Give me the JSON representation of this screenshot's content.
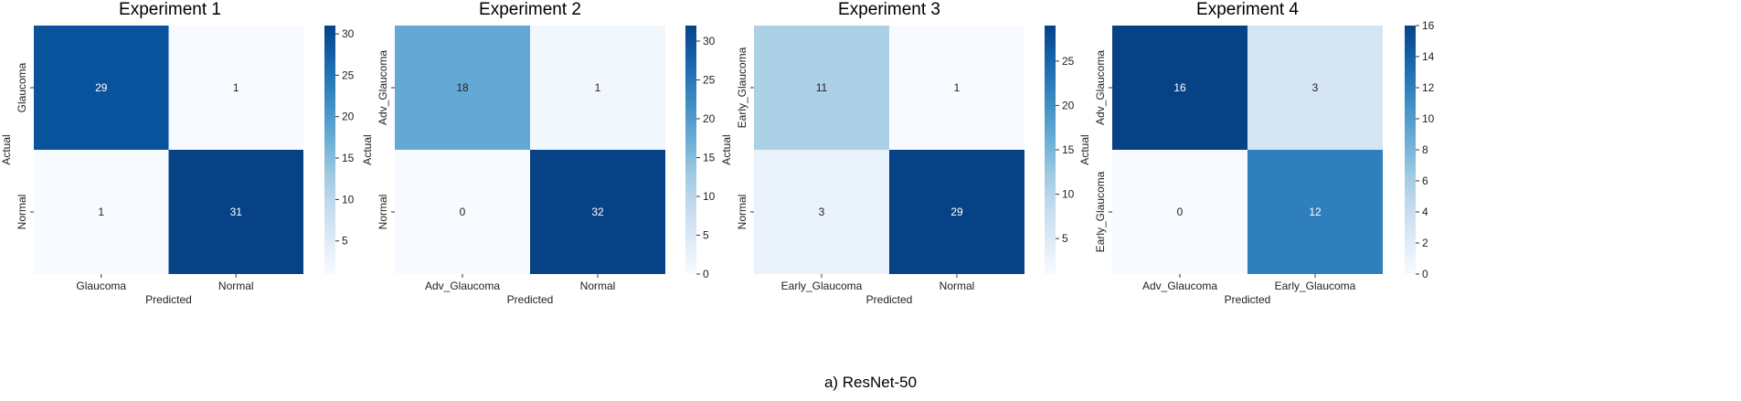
{
  "caption": "a) ResNet-50",
  "chart_data": [
    {
      "type": "heatmap",
      "title": "Experiment 1",
      "xlabel": "Predicted",
      "ylabel": "Actual",
      "x_categories": [
        "Glaucoma",
        "Normal"
      ],
      "y_categories": [
        "Glaucoma",
        "Normal"
      ],
      "values": [
        [
          29,
          1
        ],
        [
          1,
          31
        ]
      ],
      "colorbar": {
        "min": 1,
        "max": 31,
        "ticks": [
          5,
          10,
          15,
          20,
          25,
          30
        ]
      },
      "colormap": "Blues"
    },
    {
      "type": "heatmap",
      "title": "Experiment 2",
      "xlabel": "Predicted",
      "ylabel": "Actual",
      "x_categories": [
        "Adv_Glaucoma",
        "Normal"
      ],
      "y_categories": [
        "Adv_Glaucoma",
        "Normal"
      ],
      "values": [
        [
          18,
          1
        ],
        [
          0,
          32
        ]
      ],
      "colorbar": {
        "min": 0,
        "max": 32,
        "ticks": [
          0,
          5,
          10,
          15,
          20,
          25,
          30
        ]
      },
      "colormap": "Blues"
    },
    {
      "type": "heatmap",
      "title": "Experiment 3",
      "xlabel": "Predicted",
      "ylabel": "Actual",
      "x_categories": [
        "Early_Glaucoma",
        "Normal"
      ],
      "y_categories": [
        "Early_Glaucoma",
        "Normal"
      ],
      "values": [
        [
          11,
          1
        ],
        [
          3,
          29
        ]
      ],
      "colorbar": {
        "min": 1,
        "max": 29,
        "ticks": [
          5,
          10,
          15,
          20,
          25
        ]
      },
      "colormap": "Blues"
    },
    {
      "type": "heatmap",
      "title": "Experiment 4",
      "xlabel": "Predicted",
      "ylabel": "Actual",
      "x_categories": [
        "Adv_Glaucoma",
        "Early_Glaucoma"
      ],
      "y_categories": [
        "Adv_Glaucoma",
        "Early_Glaucoma"
      ],
      "values": [
        [
          16,
          3
        ],
        [
          0,
          12
        ]
      ],
      "colorbar": {
        "min": 0,
        "max": 16,
        "ticks": [
          0,
          2,
          4,
          6,
          8,
          10,
          12,
          14,
          16
        ]
      },
      "colormap": "Blues"
    }
  ]
}
